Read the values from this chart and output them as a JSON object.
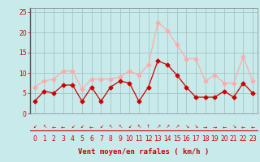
{
  "x": [
    0,
    1,
    2,
    3,
    4,
    5,
    6,
    7,
    8,
    9,
    10,
    11,
    12,
    13,
    14,
    15,
    16,
    17,
    18,
    19,
    20,
    21,
    22,
    23
  ],
  "rafales": [
    6.5,
    8.0,
    8.5,
    10.5,
    10.5,
    6.0,
    8.5,
    8.5,
    8.5,
    9.0,
    10.5,
    9.5,
    12.0,
    22.5,
    20.5,
    17.0,
    13.5,
    13.5,
    8.0,
    9.5,
    7.5,
    7.5,
    14.0,
    8.0
  ],
  "vent_moyen": [
    3.0,
    5.5,
    5.0,
    7.0,
    7.0,
    3.0,
    6.5,
    3.0,
    6.5,
    8.0,
    7.5,
    3.0,
    6.5,
    13.0,
    12.0,
    9.5,
    6.5,
    4.0,
    4.0,
    4.0,
    5.5,
    4.0,
    7.5,
    5.0
  ],
  "color_rafales": "#ffaaaa",
  "color_vent": "#cc0000",
  "bg_color": "#c8eaea",
  "grid_color": "#9bbfbf",
  "xlabel": "Vent moyen/en rafales ( km/h )",
  "ylim": [
    0,
    26
  ],
  "yticks": [
    0,
    5,
    10,
    15,
    20,
    25
  ],
  "xticks": [
    0,
    1,
    2,
    3,
    4,
    5,
    6,
    7,
    8,
    9,
    10,
    11,
    12,
    13,
    14,
    15,
    16,
    17,
    18,
    19,
    20,
    21,
    22,
    23
  ],
  "tick_fontsize": 5.5,
  "xlabel_fontsize": 6.5,
  "line_width": 0.9,
  "marker_size": 2.5,
  "arrow_symbols": [
    "↙",
    "↖",
    "←",
    "←",
    "↙",
    "↙",
    "←",
    "↙",
    "↖",
    "↖",
    "↙",
    "↖",
    "↑",
    "↗",
    "↗",
    "↗",
    "↘",
    "↘",
    "→",
    "→",
    "←",
    "↘",
    "←",
    "←"
  ]
}
